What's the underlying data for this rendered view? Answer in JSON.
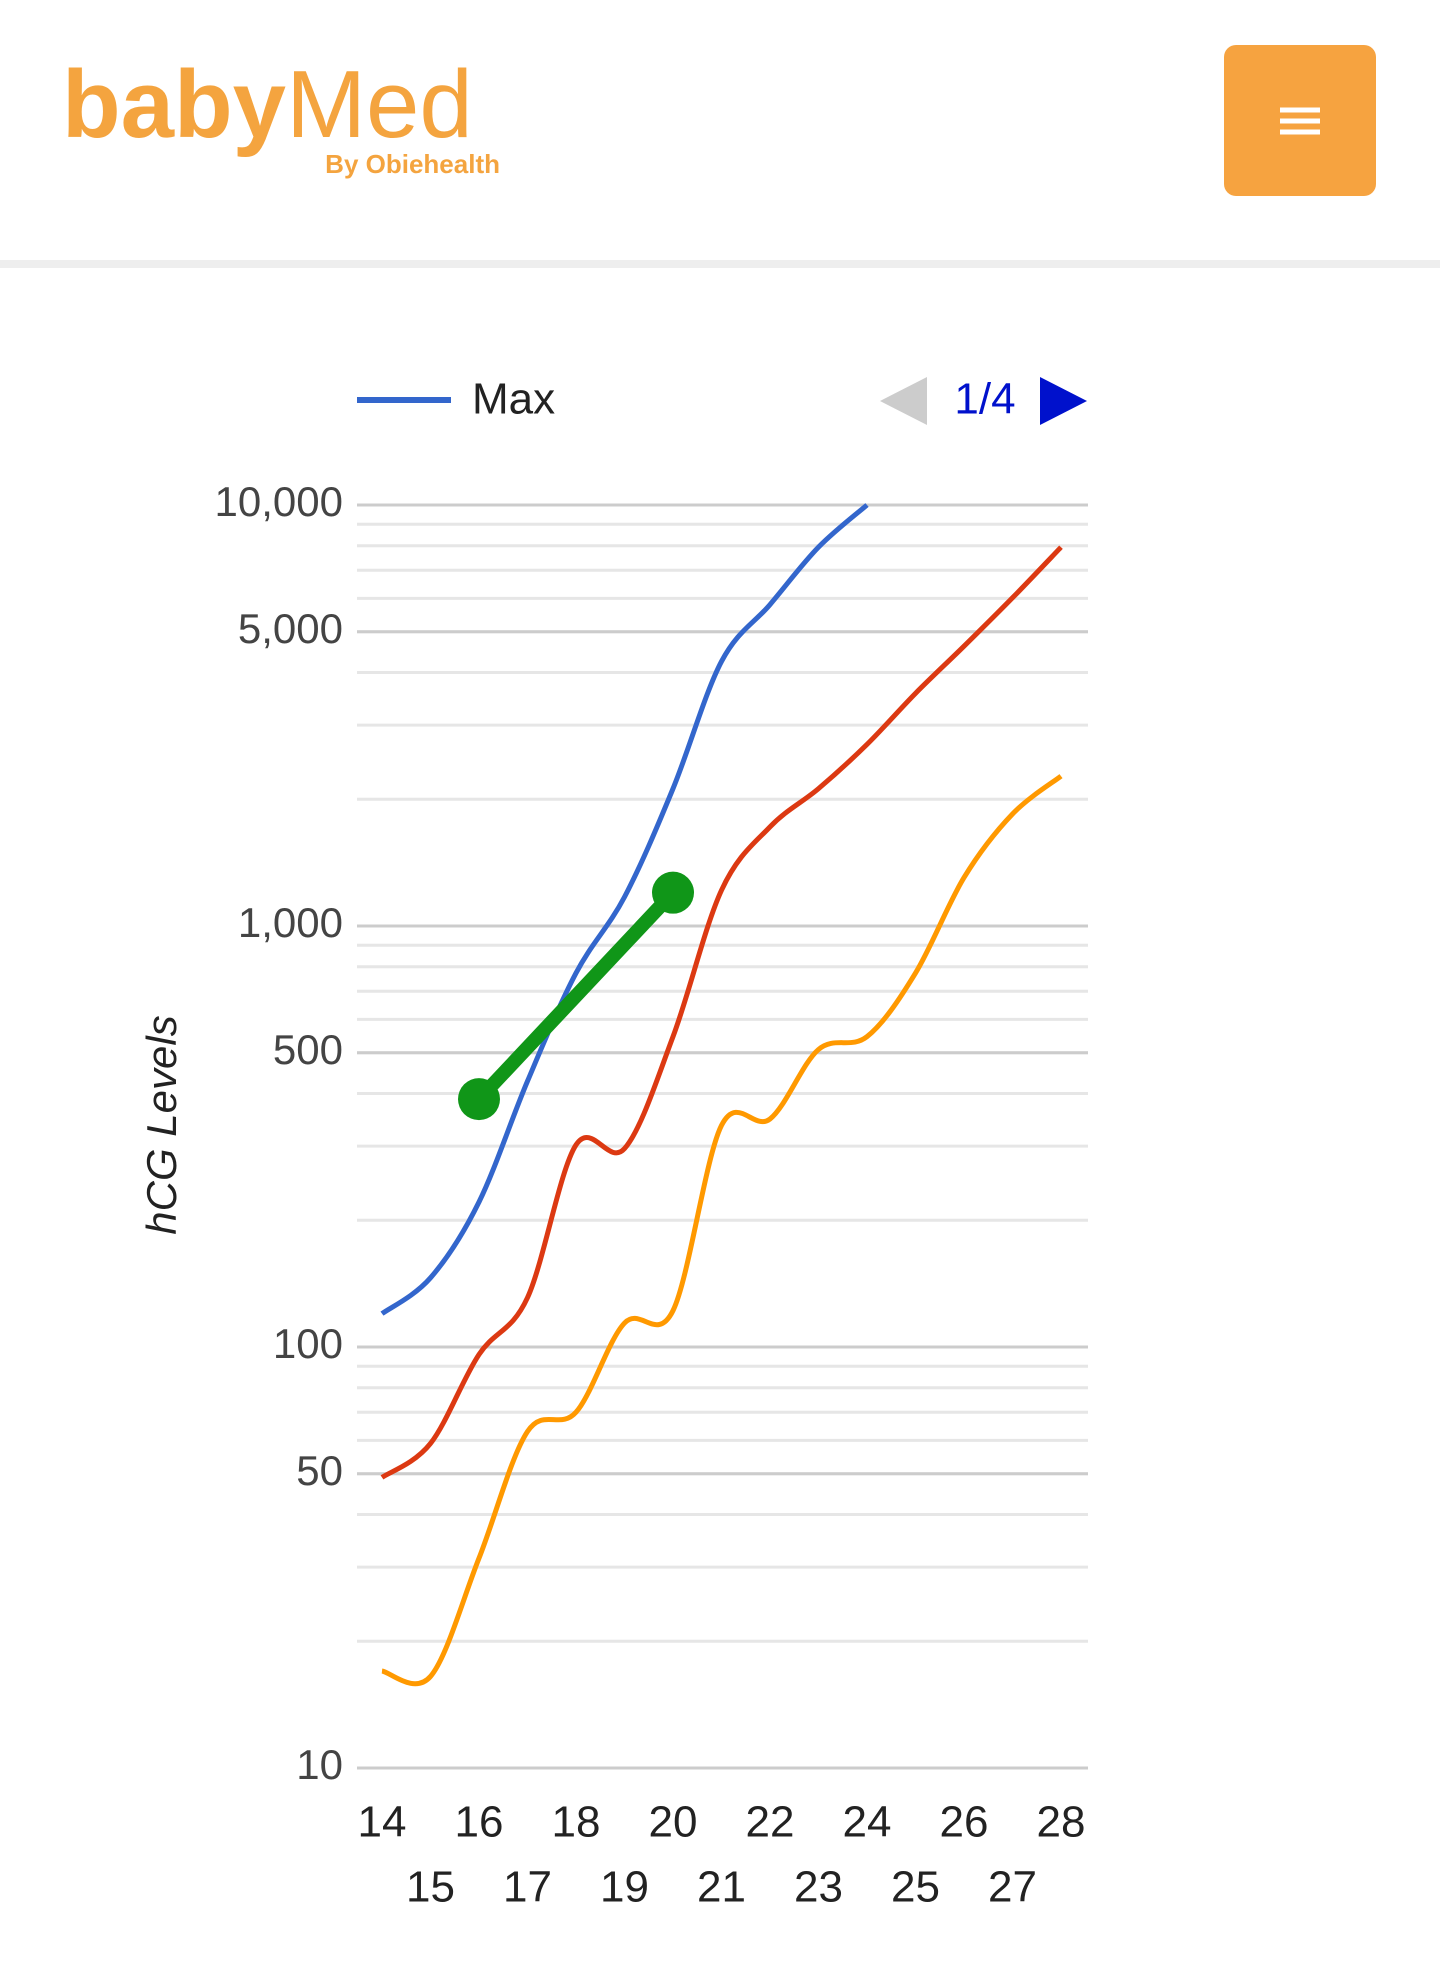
{
  "header": {
    "logo_bold": "baby",
    "logo_light": "Med",
    "logo_sub": "By Obiehealth"
  },
  "chart_data": {
    "type": "line",
    "y_label": "hCG Levels",
    "legend_page": "1/4",
    "log_scale_y": true,
    "grid": true,
    "minor_grid": true,
    "x": [
      14,
      15,
      16,
      17,
      18,
      19,
      20,
      21,
      22,
      23,
      24,
      25,
      26,
      27,
      28
    ],
    "xlim": [
      14,
      28
    ],
    "xticks": [
      14,
      15,
      16,
      17,
      18,
      19,
      20,
      21,
      22,
      23,
      24,
      25,
      26,
      27,
      28
    ],
    "ylim": [
      10,
      10000
    ],
    "yticks": [
      10,
      50,
      100,
      500,
      {
        "value": 1000,
        "label": "1,000"
      },
      {
        "value": 5000,
        "label": "5,000"
      },
      {
        "value": 10000,
        "label": "10,000"
      }
    ],
    "series": [
      {
        "name": "Max",
        "color": "#3366cc",
        "values": [
          120,
          146,
          221,
          428,
          773,
          1172,
          2120,
          4250,
          5800,
          7940,
          10000,
          null,
          null,
          null,
          null
        ]
      },
      {
        "color": "#dc3912",
        "values": [
          49,
          59,
          96,
          131,
          302,
          296,
          546,
          1216,
          1720,
          2120,
          2700,
          3570,
          4620,
          6020,
          7940
        ]
      },
      {
        "color": "#ff9900",
        "values": [
          17,
          16.5,
          31.5,
          63,
          70,
          114,
          122,
          336,
          348,
          509,
          546,
          773,
          1303,
          1845,
          2270
        ]
      },
      {
        "color": "#109618",
        "values": [
          null,
          null,
          388,
          null,
          null,
          null,
          1200,
          null,
          null,
          null,
          null,
          null,
          null,
          null,
          null
        ],
        "points": true
      }
    ]
  }
}
